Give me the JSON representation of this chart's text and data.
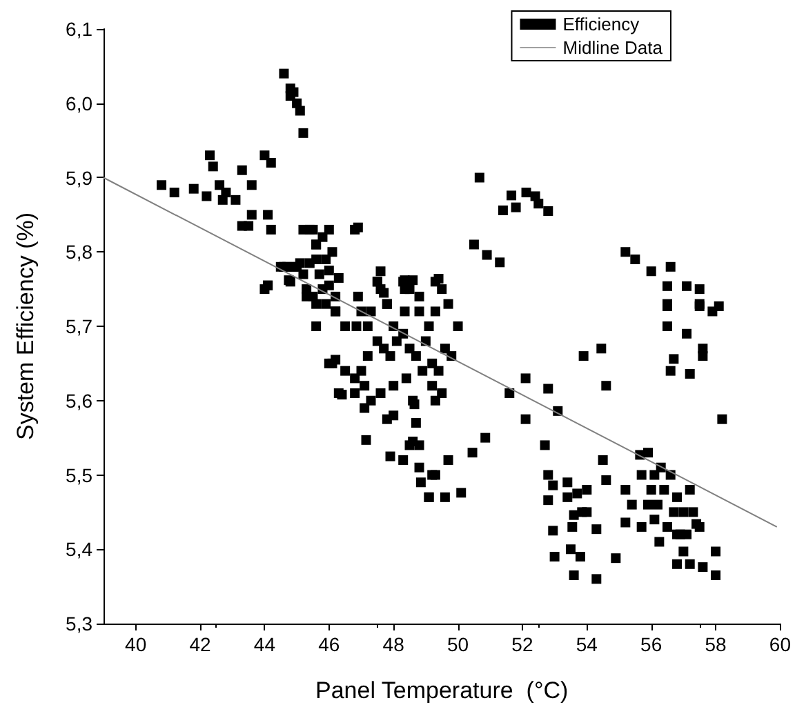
{
  "chart_data": {
    "type": "scatter",
    "xlabel": "Panel Temperature  (°C)",
    "ylabel": "System Efficiency (%)",
    "xlim": [
      39,
      60
    ],
    "xticks": [
      40,
      42,
      44,
      46,
      48,
      50,
      52,
      54,
      56,
      58,
      60
    ],
    "ylim": [
      5.3,
      6.1
    ],
    "yticks": [
      {
        "value": 5.3,
        "label": "5,3"
      },
      {
        "value": 5.4,
        "label": "5,4"
      },
      {
        "value": 5.5,
        "label": "5,5"
      },
      {
        "value": 5.6,
        "label": "5,6"
      },
      {
        "value": 5.7,
        "label": "5,7"
      },
      {
        "value": 5.8,
        "label": "5,8"
      },
      {
        "value": 5.9,
        "label": "5,9"
      },
      {
        "value": 6.0,
        "label": "6,0"
      },
      {
        "value": 6.1,
        "label": "6,1"
      }
    ],
    "grid": false,
    "legend": "top right",
    "series": [
      {
        "name": "Efficiency",
        "marker": "square",
        "color": "#000000",
        "x": [
          40.8,
          41.2,
          41.8,
          42.3,
          42.4,
          42.2,
          42.6,
          42.8,
          42.7,
          43.1,
          43.3,
          43.3,
          43.6,
          43.6,
          44.0,
          44.2,
          44.1,
          44.2,
          44.1,
          43.5,
          44.6,
          44.8,
          44.8,
          44.9,
          45.0,
          45.1,
          45.2,
          45.2,
          45.5,
          45.6,
          45.6,
          45.8,
          45.9,
          45.7,
          45.8,
          46.8,
          44.5,
          44.7,
          45.0,
          44.8,
          45.2,
          44.0,
          45.3,
          45.5,
          45.9,
          45.6,
          46.2,
          46.5,
          46.9,
          47.2,
          47.3,
          47.5,
          47.6,
          47.8,
          48.0,
          48.3,
          48.5,
          48.8,
          49.1,
          49.3,
          49.5,
          49.7,
          46.0,
          46.2,
          46.5,
          46.8,
          47.0,
          47.2,
          47.5,
          47.7,
          47.9,
          48.1,
          48.3,
          48.5,
          48.7,
          49.0,
          49.2,
          49.4,
          49.6,
          49.8,
          50.0,
          46.3,
          46.8,
          47.1,
          47.3,
          47.6,
          48.0,
          48.4,
          48.6,
          48.9,
          49.2,
          49.5,
          47.1,
          47.15,
          47.8,
          48.0,
          47.9,
          48.3,
          48.65,
          48.7,
          48.6,
          48.5,
          48.8,
          48.8,
          48.85,
          49.3,
          49.1,
          49.3,
          49.2,
          49.1,
          49.6,
          50.1,
          49.7,
          50.45,
          50.85,
          52.7,
          53.1,
          52.1,
          51.6,
          52.1,
          52.8,
          54.45,
          53.9,
          54.6,
          50.67,
          51.66,
          51.4,
          51.8,
          52.12,
          52.4,
          52.5,
          52.8,
          50.5,
          50.9,
          51.3,
          55.2,
          55.5,
          56.0,
          56.6,
          56.5,
          57.1,
          57.5,
          56.5,
          57.5,
          57.9,
          58.1,
          56.5,
          57.5,
          56.5,
          57.1,
          57.6,
          56.7,
          56.6,
          57.2,
          57.6,
          58.2,
          52.8,
          52.95,
          53.4,
          53.4,
          52.8,
          53.7,
          54.0,
          53.85,
          53.6,
          53.55,
          54.0,
          52.95,
          53.0,
          53.5,
          53.8,
          53.6,
          54.3,
          54.3,
          54.9,
          54.5,
          54.6,
          55.2,
          55.4,
          55.2,
          55.7,
          56.25,
          55.65,
          55.9,
          56.3,
          55.7,
          56.1,
          56.6,
          56.0,
          56.4,
          56.8,
          57.2,
          55.9,
          56.2,
          56.7,
          57.0,
          57.3,
          56.1,
          56.5,
          56.8,
          57.1,
          57.5,
          57.4,
          56.9,
          57.0,
          56.8,
          57.2,
          57.6,
          58.0,
          58.0,
          45.4,
          46.0,
          46.9,
          45.6,
          46.1,
          46.0,
          46.3,
          46.0,
          46.2,
          45.4,
          44.6,
          44.9,
          45.1,
          44.75,
          44.1,
          45.3,
          45.6,
          46.2,
          47.6,
          47.5,
          48.35,
          48.6,
          49.4,
          48.35,
          47.0,
          47.7,
          47.8,
          48.35,
          48.8,
          49.3,
          46.1,
          46.4,
          46.85
        ],
        "values": [
          5.89,
          5.88,
          5.885,
          5.93,
          5.915,
          5.875,
          5.89,
          5.88,
          5.87,
          5.87,
          5.91,
          5.835,
          5.85,
          5.89,
          5.93,
          5.92,
          5.85,
          5.83,
          5.755,
          5.835,
          6.04,
          6.02,
          6.01,
          6.015,
          6.0,
          5.99,
          5.96,
          5.83,
          5.83,
          5.81,
          5.79,
          5.82,
          5.79,
          5.77,
          5.75,
          5.83,
          5.78,
          5.78,
          5.78,
          5.76,
          5.77,
          5.75,
          5.75,
          5.74,
          5.73,
          5.7,
          5.72,
          5.7,
          5.74,
          5.7,
          5.72,
          5.76,
          5.75,
          5.73,
          5.7,
          5.76,
          5.75,
          5.74,
          5.7,
          5.76,
          5.75,
          5.73,
          5.65,
          5.655,
          5.64,
          5.63,
          5.64,
          5.66,
          5.68,
          5.67,
          5.66,
          5.68,
          5.69,
          5.67,
          5.66,
          5.68,
          5.65,
          5.64,
          5.67,
          5.66,
          5.7,
          5.61,
          5.61,
          5.62,
          5.6,
          5.61,
          5.62,
          5.63,
          5.6,
          5.64,
          5.62,
          5.61,
          5.59,
          5.547,
          5.575,
          5.58,
          5.525,
          5.52,
          5.595,
          5.57,
          5.545,
          5.54,
          5.54,
          5.51,
          5.49,
          5.5,
          5.47,
          5.6,
          5.5,
          5.47,
          5.47,
          5.476,
          5.52,
          5.53,
          5.55,
          5.54,
          5.586,
          5.575,
          5.61,
          5.63,
          5.616,
          5.67,
          5.66,
          5.62,
          5.9,
          5.876,
          5.856,
          5.86,
          5.88,
          5.875,
          5.865,
          5.855,
          5.81,
          5.796,
          5.786,
          5.8,
          5.79,
          5.774,
          5.78,
          5.754,
          5.754,
          5.75,
          5.73,
          5.73,
          5.72,
          5.727,
          5.727,
          5.727,
          5.7,
          5.69,
          5.67,
          5.656,
          5.64,
          5.636,
          5.66,
          5.575,
          5.5,
          5.486,
          5.49,
          5.47,
          5.466,
          5.475,
          5.48,
          5.45,
          5.446,
          5.43,
          5.45,
          5.425,
          5.39,
          5.4,
          5.39,
          5.365,
          5.36,
          5.427,
          5.388,
          5.52,
          5.493,
          5.48,
          5.46,
          5.436,
          5.43,
          5.41,
          5.527,
          5.53,
          5.51,
          5.5,
          5.5,
          5.5,
          5.48,
          5.48,
          5.47,
          5.48,
          5.46,
          5.46,
          5.45,
          5.45,
          5.45,
          5.44,
          5.43,
          5.42,
          5.42,
          5.43,
          5.434,
          5.42,
          5.397,
          5.38,
          5.38,
          5.376,
          5.397,
          5.365,
          5.83,
          5.83,
          5.833,
          5.81,
          5.8,
          5.775,
          5.765,
          5.755,
          5.74,
          5.785,
          5.78,
          5.78,
          5.785,
          5.762,
          5.755,
          5.74,
          5.73,
          5.72,
          5.774,
          5.76,
          5.762,
          5.762,
          5.764,
          5.75,
          5.72,
          5.745,
          5.73,
          5.72,
          5.72,
          5.72,
          5.65,
          5.608,
          5.7
        ]
      },
      {
        "name": "Midline Data",
        "type": "line",
        "marker": "none",
        "line_style": "solid",
        "color": "#808080",
        "x": [
          39,
          59.9
        ],
        "values": [
          5.9,
          5.43
        ]
      }
    ]
  }
}
